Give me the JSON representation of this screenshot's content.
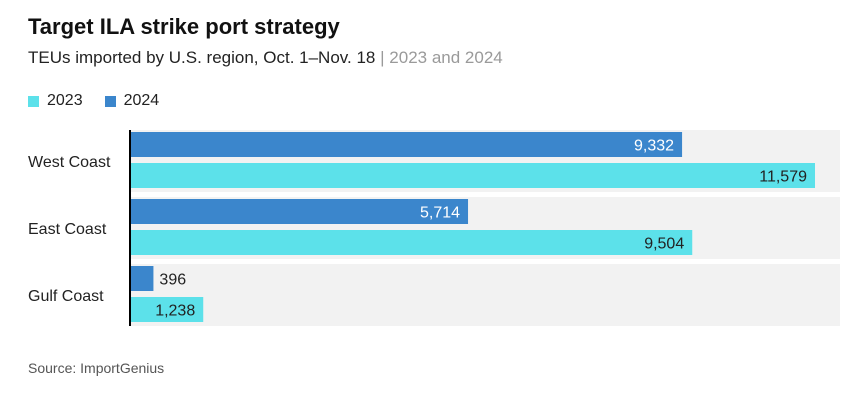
{
  "header": {
    "title": "Target ILA strike port strategy",
    "subtitle": "TEUs imported by U.S. region, Oct. 1–Nov. 18",
    "subtitle_separator": "|",
    "subtitle_years": "2023 and 2024"
  },
  "source": "Source: ImportGenius",
  "colors": {
    "series_2023": "#5ce1ea",
    "series_2024": "#3b86cc",
    "row_band": "#f2f2f2",
    "axis": "#000000"
  },
  "chart_data": {
    "type": "bar",
    "orientation": "horizontal",
    "title": "Target ILA strike port strategy",
    "subtitle": "TEUs imported by U.S. region, Oct. 1–Nov. 18 | 2023 and 2024",
    "categories": [
      "West Coast",
      "East Coast",
      "Gulf Coast"
    ],
    "series": [
      {
        "name": "2024",
        "values": [
          9332,
          5714,
          396
        ],
        "labels": [
          "9,332",
          "5,714",
          "396"
        ]
      },
      {
        "name": "2023",
        "values": [
          11579,
          9504,
          1238
        ],
        "labels": [
          "11,579",
          "9,504",
          "1,238"
        ]
      }
    ],
    "legend": [
      "2023",
      "2024"
    ],
    "legend_placement": "top-left",
    "xlim": [
      0,
      12000
    ],
    "grid": false
  }
}
